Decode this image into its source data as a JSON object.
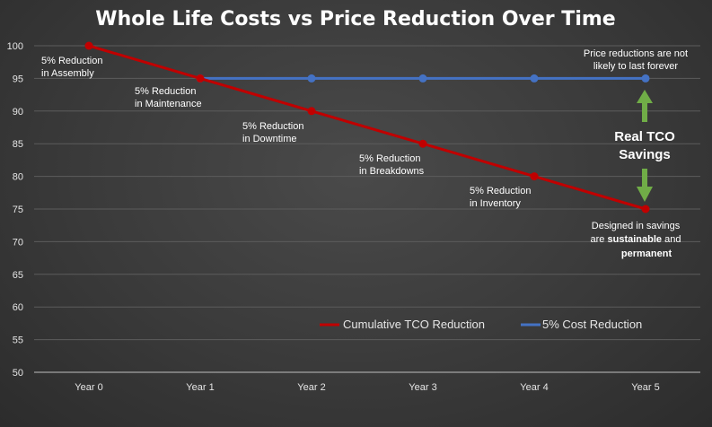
{
  "chart_data": {
    "type": "line",
    "title": "Whole Life Costs vs Price Reduction Over Time",
    "xlabel": "",
    "ylabel": "",
    "categories": [
      "Year 0",
      "Year 1",
      "Year 2",
      "Year 3",
      "Year 4",
      "Year 5"
    ],
    "ylim": [
      50,
      100
    ],
    "yticks": [
      50,
      55,
      60,
      65,
      70,
      75,
      80,
      85,
      90,
      95,
      100
    ],
    "grid": true,
    "legend_position": "bottom-right",
    "series": [
      {
        "name": "Cumulative TCO Reduction",
        "color": "#c00000",
        "values": [
          100,
          95,
          90,
          85,
          80,
          75
        ]
      },
      {
        "name": "5% Cost Reduction",
        "color": "#4472c4",
        "values": [
          null,
          95,
          95,
          95,
          95,
          95
        ]
      }
    ],
    "step_annotations": [
      {
        "category": "Year 0",
        "lines": [
          "5% Reduction",
          "in Assembly"
        ]
      },
      {
        "category": "Year 1",
        "lines": [
          "5% Reduction",
          "in Maintenance"
        ]
      },
      {
        "category": "Year 2",
        "lines": [
          "5% Reduction",
          "in Downtime"
        ]
      },
      {
        "category": "Year 3",
        "lines": [
          "5% Reduction",
          "in Breakdowns"
        ]
      },
      {
        "category": "Year 4",
        "lines": [
          "5% Reduction",
          "in Inventory"
        ]
      }
    ],
    "price_note": [
      "Price reductions are not",
      "likely to last forever"
    ],
    "savings_label": [
      "Real TCO",
      "Savings"
    ],
    "savings_arrow_color": "#70ad47",
    "sustain_note": {
      "line1": "Designed in savings",
      "line2_prefix": "are ",
      "line2_bold": "sustainable",
      "line2_suffix": " and",
      "line3_bold": "permanent"
    }
  }
}
